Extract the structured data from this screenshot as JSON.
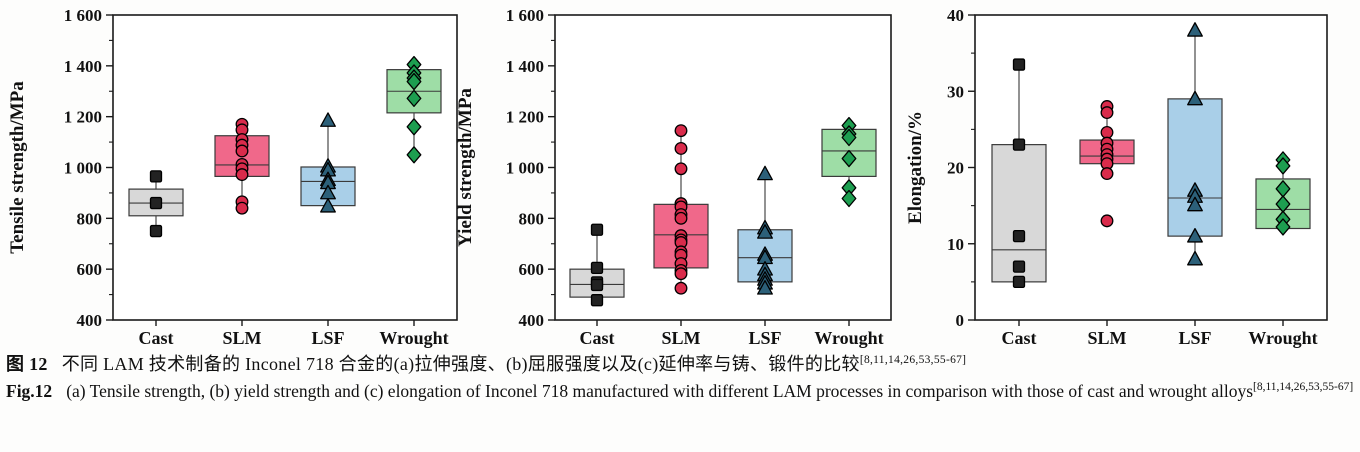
{
  "caption": {
    "zh_label": "图 12",
    "zh_text": "不同 LAM 技术制备的 Inconel 718 合金的(a)拉伸强度、(b)屈服强度以及(c)延伸率与铸、锻件的比较",
    "en_label": "Fig.12",
    "en_text": "(a) Tensile strength, (b) yield strength and (c) elongation of Inconel 718 manufactured with different LAM processes in comparison with those of cast and wrought alloys",
    "ref": "[8,11,14,26,53,55-67]"
  },
  "palette": {
    "cast_box": "#d8d8d8",
    "cast_marker": "#222222",
    "slm_box": "#f0688a",
    "slm_marker": "#d92b4b",
    "lsf_box": "#a9cfe8",
    "lsf_marker": "#2c6079",
    "wrought_box": "#9edda6",
    "wrought_marker": "#1d9e50",
    "axis": "#1a1a1a",
    "box_edge": "#3a3a3a"
  },
  "chart_data": [
    {
      "type": "box",
      "panel": "a",
      "ylabel": "Tensile strength/MPa",
      "ylim": [
        400,
        1600
      ],
      "yticks": [
        400,
        600,
        800,
        1000,
        1200,
        1400,
        1600
      ],
      "ytick_labels": [
        "400",
        "600",
        "800",
        "1 000",
        "1 200",
        "1 400",
        "1 600"
      ],
      "categories": [
        "Cast",
        "SLM",
        "LSF",
        "Wrought"
      ],
      "grid": false,
      "groups": [
        {
          "name": "Cast",
          "marker": "square",
          "box_fill": "#d8d8d8",
          "marker_fill": "#222222",
          "q1": 810,
          "median": 860,
          "q3": 915,
          "whisker_low": 750,
          "whisker_high": 965,
          "points": [
            965,
            860,
            750
          ]
        },
        {
          "name": "SLM",
          "marker": "circle",
          "box_fill": "#f0688a",
          "marker_fill": "#d92b4b",
          "q1": 965,
          "median": 1010,
          "q3": 1125,
          "whisker_low": 840,
          "whisker_high": 1170,
          "points": [
            1170,
            1148,
            1110,
            1088,
            1065,
            1012,
            995,
            972,
            865,
            840
          ]
        },
        {
          "name": "LSF",
          "marker": "triangle",
          "box_fill": "#a9cfe8",
          "marker_fill": "#2c6079",
          "q1": 850,
          "median": 945,
          "q3": 1002,
          "whisker_low": 848,
          "whisker_high": 1185,
          "points": [
            1185,
            1005,
            990,
            952,
            940,
            900,
            848
          ]
        },
        {
          "name": "Wrought",
          "marker": "diamond",
          "box_fill": "#9edda6",
          "marker_fill": "#1d9e50",
          "q1": 1215,
          "median": 1300,
          "q3": 1385,
          "whisker_low": 1050,
          "whisker_high": 1405,
          "points": [
            1405,
            1372,
            1352,
            1338,
            1272,
            1160,
            1050
          ]
        }
      ]
    },
    {
      "type": "box",
      "panel": "b",
      "ylabel": "Yield strength/MPa",
      "ylim": [
        400,
        1600
      ],
      "yticks": [
        400,
        600,
        800,
        1000,
        1200,
        1400,
        1600
      ],
      "ytick_labels": [
        "400",
        "600",
        "800",
        "1 000",
        "1 200",
        "1 400",
        "1 600"
      ],
      "categories": [
        "Cast",
        "SLM",
        "LSF",
        "Wrought"
      ],
      "grid": false,
      "groups": [
        {
          "name": "Cast",
          "marker": "square",
          "box_fill": "#d8d8d8",
          "marker_fill": "#222222",
          "q1": 490,
          "median": 540,
          "q3": 600,
          "whisker_low": 470,
          "whisker_high": 755,
          "points": [
            755,
            605,
            548,
            538,
            478
          ]
        },
        {
          "name": "SLM",
          "marker": "circle",
          "box_fill": "#f0688a",
          "marker_fill": "#d92b4b",
          "q1": 605,
          "median": 735,
          "q3": 855,
          "whisker_low": 525,
          "whisker_high": 1145,
          "points": [
            1145,
            1075,
            995,
            858,
            845,
            815,
            800,
            732,
            715,
            705,
            668,
            655,
            622,
            595,
            582,
            525
          ]
        },
        {
          "name": "LSF",
          "marker": "triangle",
          "box_fill": "#a9cfe8",
          "marker_fill": "#2c6079",
          "q1": 550,
          "median": 645,
          "q3": 755,
          "whisker_low": 525,
          "whisker_high": 975,
          "points": [
            975,
            762,
            745,
            658,
            645,
            600,
            578,
            560,
            545,
            525
          ]
        },
        {
          "name": "Wrought",
          "marker": "diamond",
          "box_fill": "#9edda6",
          "marker_fill": "#1d9e50",
          "q1": 965,
          "median": 1065,
          "q3": 1150,
          "whisker_low": 878,
          "whisker_high": 1165,
          "points": [
            1165,
            1132,
            1118,
            1035,
            920,
            878
          ]
        }
      ]
    },
    {
      "type": "box",
      "panel": "c",
      "ylabel": "Elongation/%",
      "ylim": [
        0,
        40
      ],
      "yticks": [
        0,
        10,
        20,
        30,
        40
      ],
      "ytick_labels": [
        "0",
        "10",
        "20",
        "30",
        "40"
      ],
      "categories": [
        "Cast",
        "SLM",
        "LSF",
        "Wrought"
      ],
      "grid": false,
      "groups": [
        {
          "name": "Cast",
          "marker": "square",
          "box_fill": "#d8d8d8",
          "marker_fill": "#222222",
          "q1": 5,
          "median": 9.2,
          "q3": 23,
          "whisker_low": 5,
          "whisker_high": 33.5,
          "points": [
            33.5,
            23,
            11,
            7,
            5
          ]
        },
        {
          "name": "SLM",
          "marker": "circle",
          "box_fill": "#f0688a",
          "marker_fill": "#d92b4b",
          "q1": 20.5,
          "median": 21.5,
          "q3": 23.6,
          "whisker_low": 19.2,
          "whisker_high": 28,
          "points": [
            28,
            27.2,
            24.6,
            23.2,
            22.4,
            21.7,
            21.1,
            20.5,
            19.2,
            13
          ]
        },
        {
          "name": "LSF",
          "marker": "triangle",
          "box_fill": "#a9cfe8",
          "marker_fill": "#2c6079",
          "q1": 11,
          "median": 16,
          "q3": 29,
          "whisker_low": 8,
          "whisker_high": 38,
          "points": [
            38,
            29,
            17,
            16.2,
            15.1,
            11,
            8
          ]
        },
        {
          "name": "Wrought",
          "marker": "diamond",
          "box_fill": "#9edda6",
          "marker_fill": "#1d9e50",
          "q1": 12,
          "median": 14.5,
          "q3": 18.5,
          "whisker_low": 12.2,
          "whisker_high": 21,
          "points": [
            21,
            20.2,
            17.2,
            15.2,
            13.2,
            12.2
          ]
        }
      ]
    }
  ]
}
